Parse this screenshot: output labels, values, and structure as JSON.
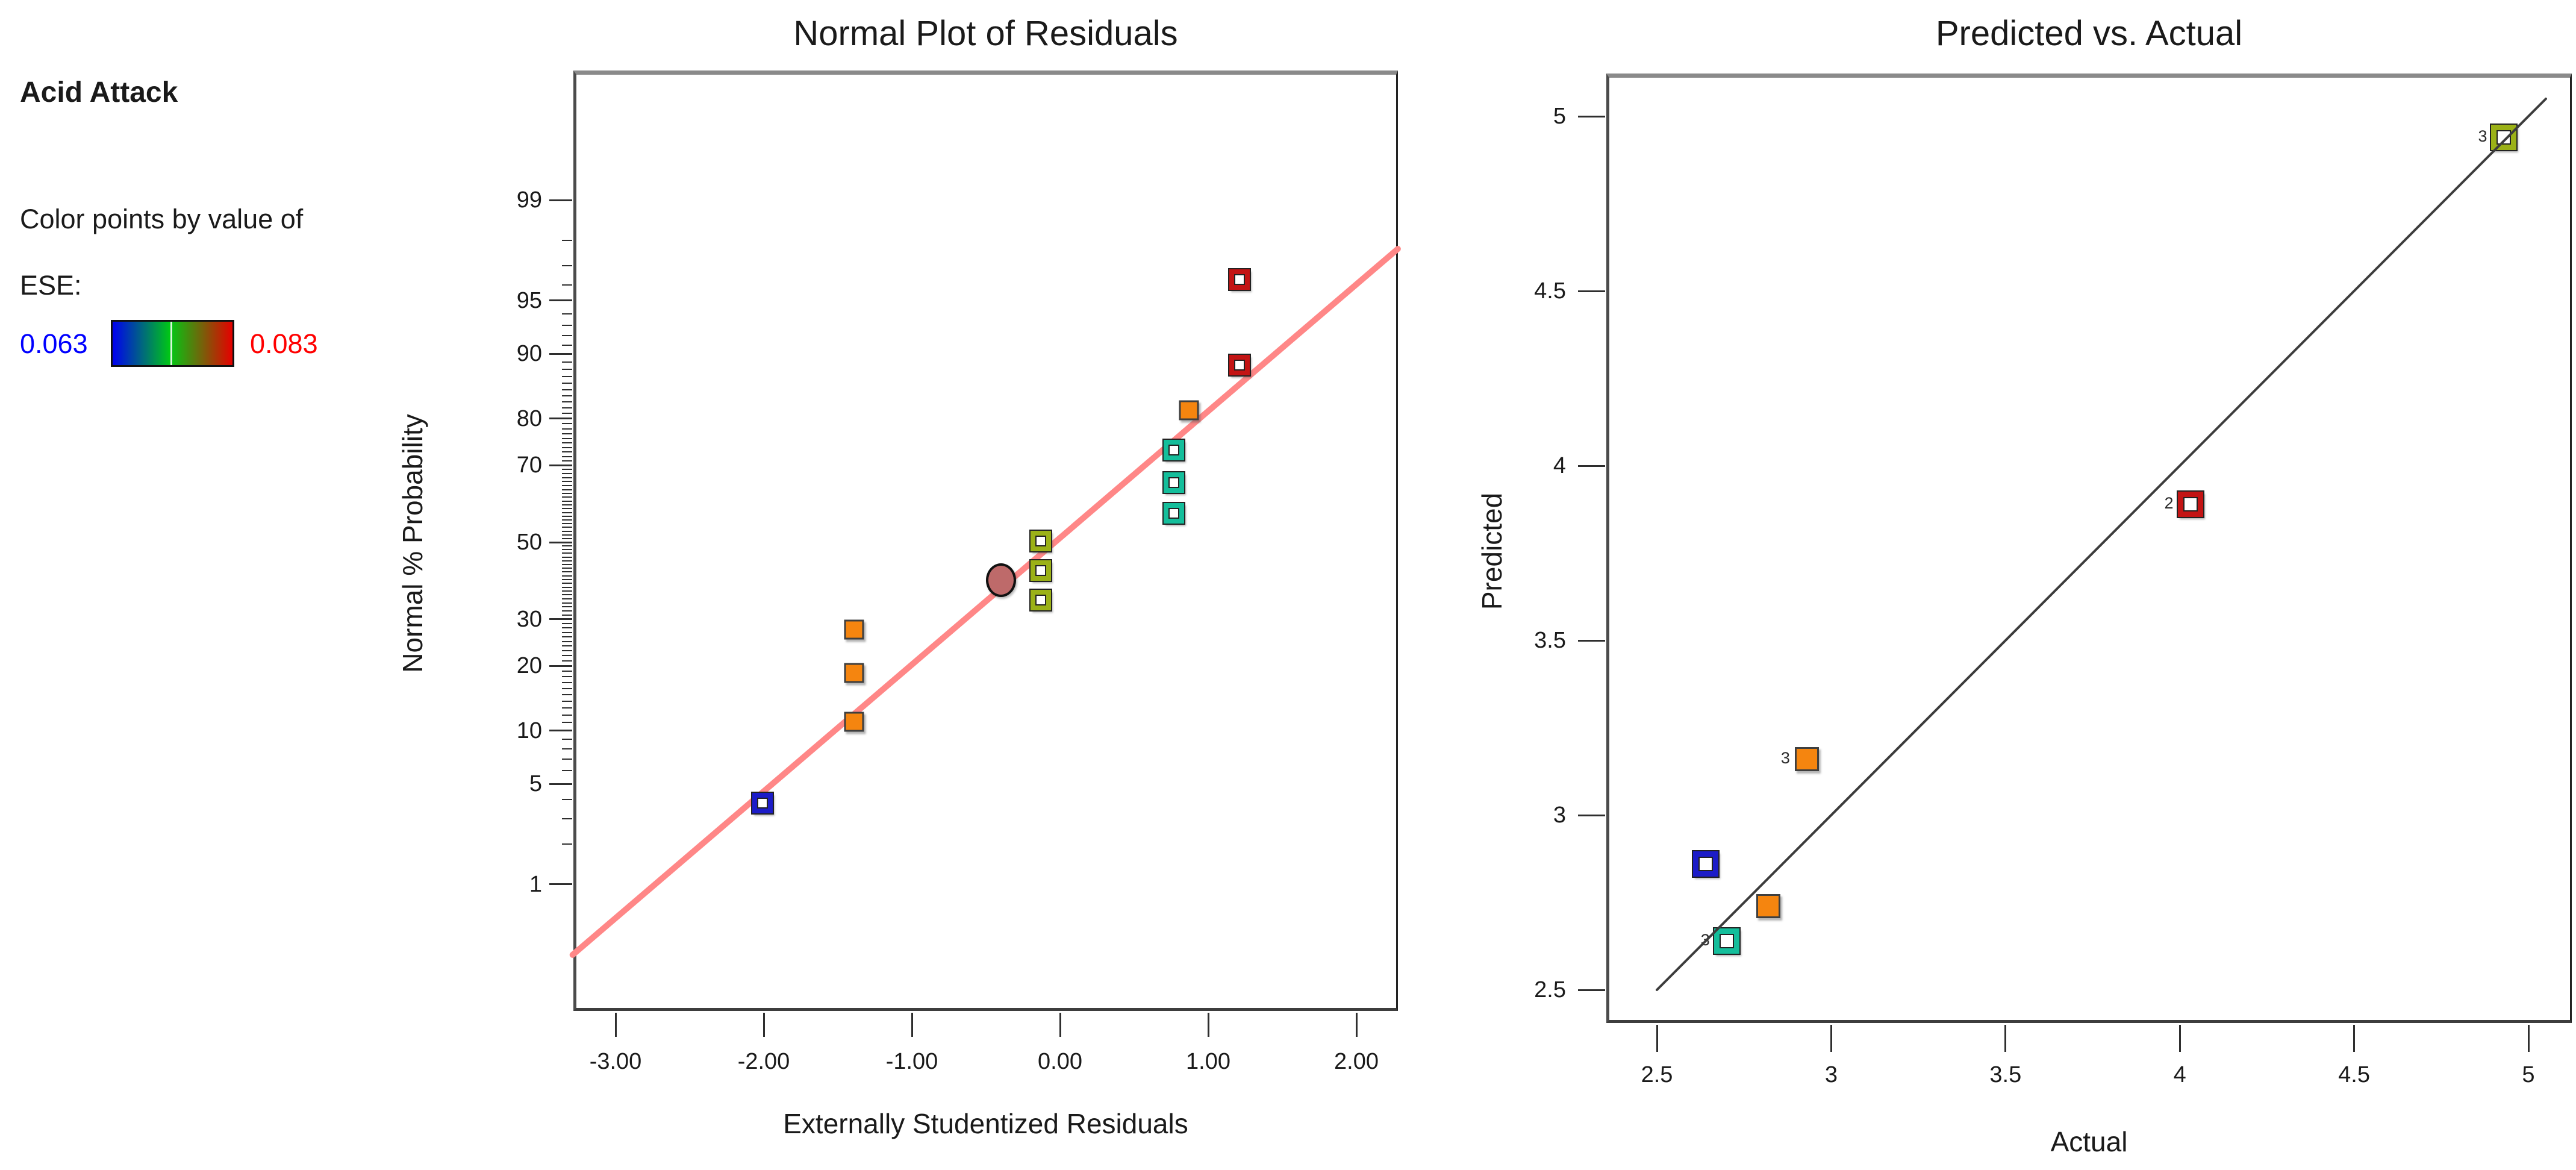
{
  "panel": {
    "title": "Acid Attack",
    "caption_line1": "Color points by value of",
    "caption_line2": "ESE:",
    "gradient": {
      "min_label": "0.063",
      "max_label": "0.083",
      "min_label_color": "#0000ff",
      "max_label_color": "#ff0000",
      "stops": [
        "#0000f0",
        "#00c814",
        "#e60000"
      ]
    }
  },
  "point_colors": {
    "navy": "#1c1cc8",
    "orange": "#f5850f",
    "olive": "#9bb117",
    "teal": "#14be9b",
    "red": "#c31414",
    "rosybrown": "#be6a6a"
  },
  "chart_data": [
    {
      "type": "scatter",
      "title": "Normal Plot of Residuals",
      "xlabel": "Externally Studentized Residuals",
      "ylabel": "Normal % Probability",
      "x_ticks": [
        -3,
        -2,
        -1,
        0,
        1,
        2
      ],
      "x_tick_labels": [
        "-3.00",
        "-2.00",
        "-1.00",
        "0.00",
        "1.00",
        "2.00"
      ],
      "xlim": [
        -3.29,
        2.28
      ],
      "y_scale": "normal-probability",
      "y_ticks": [
        99,
        95,
        90,
        80,
        70,
        50,
        30,
        20,
        10,
        5,
        1
      ],
      "y_tick_labels": [
        "99",
        "95",
        "90",
        "80",
        "70",
        "50",
        "30",
        "20",
        "10",
        "5",
        "1"
      ],
      "y_minor_ticks": "integers 1..99",
      "ylim_z": [
        -3.19,
        3.21
      ],
      "grid": false,
      "legend": "none",
      "fit_line": {
        "x1": -3.29,
        "p1": 0.25,
        "x2": 2.28,
        "p2": 97.7,
        "color": "#ff8787"
      },
      "points": [
        {
          "x": -2.01,
          "p": 3.8,
          "color": "navy",
          "marker": "square-open"
        },
        {
          "x": -1.39,
          "p": 11.1,
          "color": "orange",
          "marker": "square-filled"
        },
        {
          "x": -1.39,
          "p": 18.7,
          "color": "orange",
          "marker": "square-filled"
        },
        {
          "x": -1.39,
          "p": 27.6,
          "color": "orange",
          "marker": "square-filled"
        },
        {
          "x": -0.13,
          "p": 34.7,
          "color": "olive",
          "marker": "square-open"
        },
        {
          "x": -0.4,
          "p": 39.8,
          "color": "rosybrown",
          "marker": "circle-filled",
          "selected": true
        },
        {
          "x": -0.13,
          "p": 42.4,
          "color": "olive",
          "marker": "square-open"
        },
        {
          "x": -0.13,
          "p": 50.3,
          "color": "olive",
          "marker": "square-open"
        },
        {
          "x": 0.77,
          "p": 57.8,
          "color": "teal",
          "marker": "square-open"
        },
        {
          "x": 0.77,
          "p": 65.8,
          "color": "teal",
          "marker": "square-open"
        },
        {
          "x": 0.77,
          "p": 73.5,
          "color": "teal",
          "marker": "square-open"
        },
        {
          "x": 0.87,
          "p": 81.5,
          "color": "orange",
          "marker": "square-filled"
        },
        {
          "x": 1.21,
          "p": 88.6,
          "color": "red",
          "marker": "square-open"
        },
        {
          "x": 1.21,
          "p": 96.3,
          "color": "red",
          "marker": "square-open"
        }
      ]
    },
    {
      "type": "scatter",
      "title": "Predicted vs. Actual",
      "xlabel": "Actual",
      "ylabel": "Predicted",
      "x_ticks": [
        2.5,
        3,
        3.5,
        4,
        4.5,
        5
      ],
      "x_tick_labels": [
        "2.5",
        "3",
        "3.5",
        "4",
        "4.5",
        "5"
      ],
      "y_ticks": [
        5,
        4.5,
        4,
        3.5,
        3,
        2.5
      ],
      "y_tick_labels": [
        "5",
        "4.5",
        "4",
        "3.5",
        "3",
        "2.5"
      ],
      "xlim": [
        2.36,
        5.12
      ],
      "ylim": [
        2.43,
        5.15
      ],
      "grid": false,
      "legend": "none",
      "identity_line": {
        "x1": 2.5,
        "y1": 2.5,
        "x2": 5.05,
        "y2": 5.05,
        "color": "#3c3c3c"
      },
      "points": [
        {
          "x": 2.64,
          "y": 2.86,
          "color": "navy",
          "marker": "square-open"
        },
        {
          "x": 2.7,
          "y": 2.64,
          "color": "teal",
          "marker": "square-open",
          "count": "3"
        },
        {
          "x": 2.82,
          "y": 2.74,
          "color": "orange",
          "marker": "square-filled"
        },
        {
          "x": 2.93,
          "y": 3.16,
          "color": "orange",
          "marker": "square-filled",
          "count": "3"
        },
        {
          "x": 4.03,
          "y": 3.89,
          "color": "red",
          "marker": "square-open",
          "count": "2"
        },
        {
          "x": 4.93,
          "y": 4.94,
          "color": "olive",
          "marker": "square-open",
          "count": "3"
        }
      ]
    }
  ]
}
